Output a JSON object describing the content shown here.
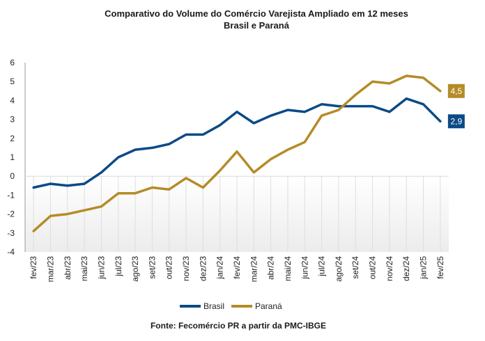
{
  "chart_data": {
    "type": "line",
    "title": "Comparativo do Volume do Comércio Varejista Ampliado em 12 meses",
    "subtitle": "Brasil e Paraná",
    "categories": [
      "fev/23",
      "mar/23",
      "abr/23",
      "mai/23",
      "jun/23",
      "jul/23",
      "ago/23",
      "set/23",
      "out/23",
      "nov/23",
      "dez/23",
      "jan/24",
      "fev/24",
      "mar/24",
      "abr/24",
      "mai/24",
      "jun/24",
      "jul/24",
      "ago/24",
      "set/24",
      "out/24",
      "nov/24",
      "dez/24",
      "jan/25",
      "fev/25"
    ],
    "series": [
      {
        "name": "Brasil",
        "color": "#0b4a86",
        "values": [
          -0.6,
          -0.4,
          -0.5,
          -0.4,
          0.2,
          1.0,
          1.4,
          1.5,
          1.7,
          2.2,
          2.2,
          2.7,
          3.4,
          2.8,
          3.2,
          3.5,
          3.4,
          3.8,
          3.7,
          3.7,
          3.7,
          3.4,
          4.1,
          3.8,
          2.9
        ]
      },
      {
        "name": "Paraná",
        "color": "#b58b28",
        "values": [
          -2.9,
          -2.1,
          -2.0,
          -1.8,
          -1.6,
          -0.9,
          -0.9,
          -0.6,
          -0.7,
          -0.1,
          -0.6,
          0.3,
          1.3,
          0.2,
          0.9,
          1.4,
          1.8,
          3.2,
          3.5,
          4.3,
          5.0,
          4.9,
          5.3,
          5.2,
          4.5
        ]
      }
    ],
    "ylim": [
      -4,
      6
    ],
    "yticks": [
      -4,
      -3,
      -2,
      -1,
      0,
      1,
      2,
      3,
      4,
      5,
      6
    ],
    "ytick_labels": [
      "-4",
      "-3",
      "-2",
      "-1",
      "0",
      "1",
      "2",
      "3",
      "4",
      "5",
      "6"
    ],
    "grid": false,
    "legend_position": "bottom-center",
    "end_labels": [
      {
        "series": "Paraná",
        "text": "4,5"
      },
      {
        "series": "Brasil",
        "text": "2,9"
      }
    ]
  },
  "source": "Fonte: Fecomércio PR a partir da PMC-IBGE"
}
